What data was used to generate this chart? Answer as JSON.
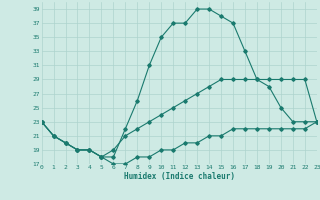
{
  "title": "",
  "xlabel": "Humidex (Indice chaleur)",
  "bg_color": "#ceeae4",
  "grid_color": "#aed4ce",
  "line_color": "#1a7a6e",
  "hours": [
    0,
    1,
    2,
    3,
    4,
    5,
    6,
    7,
    8,
    9,
    10,
    11,
    12,
    13,
    14,
    15,
    16,
    17,
    18,
    19,
    20,
    21,
    22,
    23
  ],
  "line_max": [
    23,
    21,
    20,
    19,
    19,
    18,
    18,
    22,
    26,
    31,
    35,
    37,
    37,
    39,
    39,
    38,
    37,
    33,
    29,
    28,
    25,
    23,
    23,
    23
  ],
  "line_mean": [
    23,
    21,
    20,
    19,
    19,
    18,
    19,
    21,
    22,
    23,
    24,
    25,
    26,
    27,
    28,
    29,
    29,
    29,
    29,
    29,
    29,
    29,
    29,
    23
  ],
  "line_min": [
    23,
    21,
    20,
    19,
    19,
    18,
    17,
    17,
    18,
    18,
    19,
    19,
    20,
    20,
    21,
    21,
    22,
    22,
    22,
    22,
    22,
    22,
    22,
    23
  ],
  "xlim": [
    0,
    23
  ],
  "ylim": [
    17,
    40
  ],
  "yticks": [
    17,
    19,
    21,
    23,
    25,
    27,
    29,
    31,
    33,
    35,
    37,
    39
  ],
  "xticks": [
    0,
    1,
    2,
    3,
    4,
    5,
    6,
    7,
    8,
    9,
    10,
    11,
    12,
    13,
    14,
    15,
    16,
    17,
    18,
    19,
    20,
    21,
    22,
    23
  ]
}
